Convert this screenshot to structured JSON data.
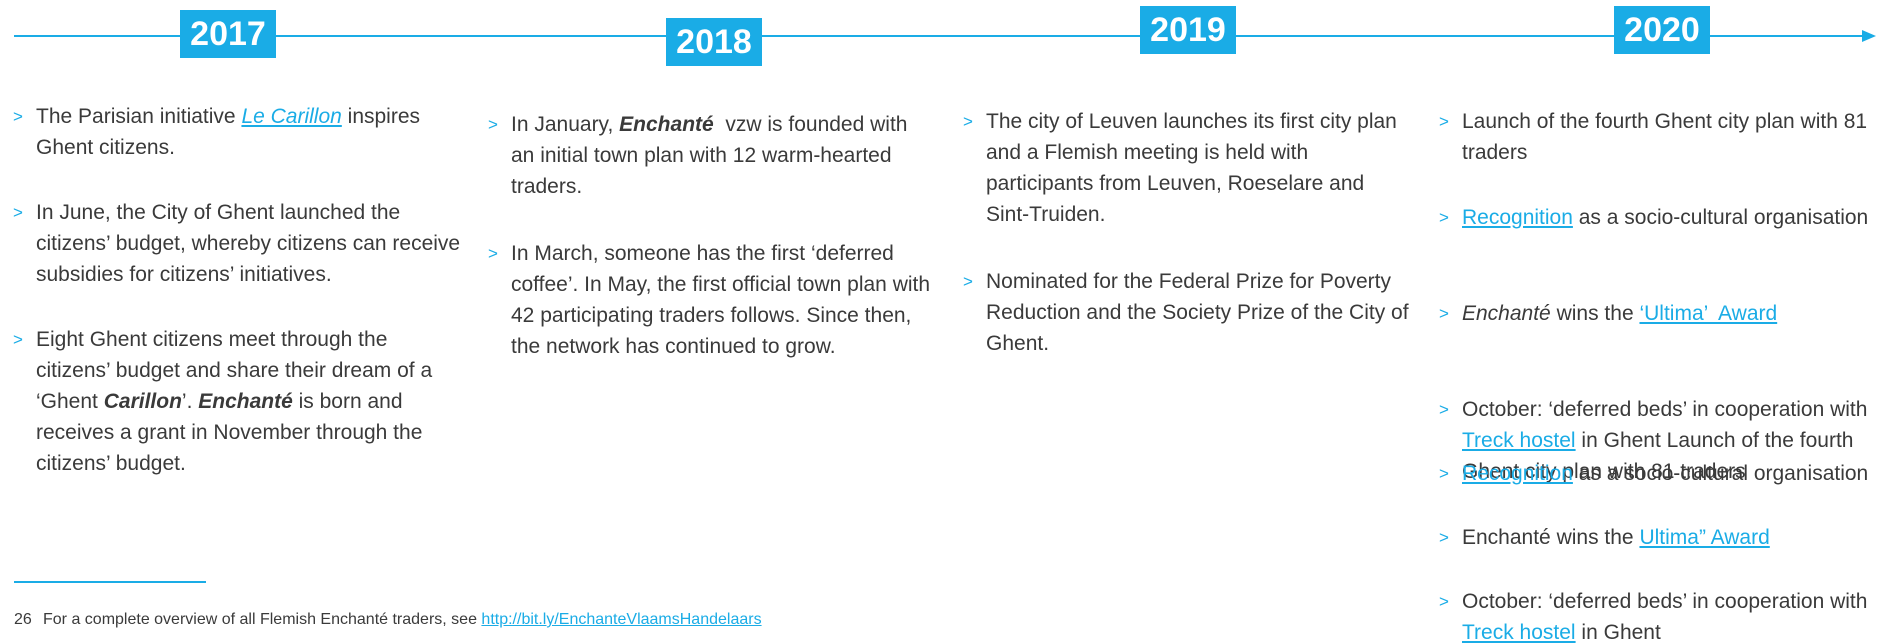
{
  "timeline": {
    "marker": ">",
    "columns": [
      {
        "year": "2017",
        "items": [
          [
            {
              "text": "The Parisian initiative "
            },
            {
              "text": "Le Carillon",
              "link": true,
              "italic": true
            },
            {
              "text": " inspires Ghent citizens."
            }
          ],
          [
            {
              "text": "In June, the City of Ghent launched the citizens’ budget, whereby citizens can receive subsidies for citizens’ initiatives."
            }
          ],
          [
            {
              "text": "Eight Ghent citizens meet through the citizens’ budget and share their dream of a ‘Ghent "
            },
            {
              "text": "Carillon",
              "bold": true,
              "italic": true
            },
            {
              "text": "’. "
            },
            {
              "text": "Enchanté",
              "bold": true,
              "italic": true
            },
            {
              "text": " is born and receives a grant in November through the citizens’ budget."
            }
          ]
        ]
      },
      {
        "year": "2018",
        "items": [
          [
            {
              "text": "In January, "
            },
            {
              "text": "Enchanté",
              "bold": true,
              "italic": true
            },
            {
              "text": "  vzw is founded with an initial town plan with 12 warm-hearted traders."
            }
          ],
          [
            {
              "text": "In March, someone has the first ‘deferred coffee’. In May, the first official town plan with 42 participating traders follows. Since then, the network has continued to grow."
            }
          ]
        ]
      },
      {
        "year": "2019",
        "items": [
          [
            {
              "text": "The city of Leuven launches its first city plan and a Flemish meeting is held with participants from Leuven, Roeselare and Sint-Truiden."
            }
          ],
          [
            {
              "text": "Nominated for the Federal Prize for Poverty Reduction and the Society Prize of the City of Ghent."
            }
          ]
        ]
      },
      {
        "year": "2020",
        "items": [
          [
            {
              "text": "Launch of the fourth Ghent city plan with 81 traders"
            }
          ],
          [
            {
              "text": "Recognition",
              "link": true
            },
            {
              "text": " as a socio-cultural organisation"
            }
          ],
          [
            {
              "text": "Enchanté",
              "italic": true
            },
            {
              "text": " wins the "
            },
            {
              "text": "‘Ultima’  Award",
              "link": true
            }
          ],
          [
            {
              "text": "October: ‘deferred beds’ in cooperation with "
            },
            {
              "text": "Treck hostel",
              "link": true
            },
            {
              "text": " in Ghent Launch of the fourth Ghent city plan with 81 traders"
            }
          ],
          [
            {
              "text": "Recognition",
              "link": true
            },
            {
              "text": " as a socio-cultural organisation"
            }
          ],
          [
            {
              "text": "Enchanté wins the "
            },
            {
              "text": "Ultima” Award",
              "link": true
            }
          ],
          [
            {
              "text": "October: ‘deferred beds’ in cooperation with "
            },
            {
              "text": "Treck hostel",
              "link": true
            },
            {
              "text": " in Ghent"
            }
          ]
        ]
      }
    ]
  },
  "footnote": {
    "number": "26",
    "text": "For a complete overview of all Flemish Enchanté traders, see ",
    "link": "http://bit.ly/EnchanteVlaamsHandelaars"
  }
}
